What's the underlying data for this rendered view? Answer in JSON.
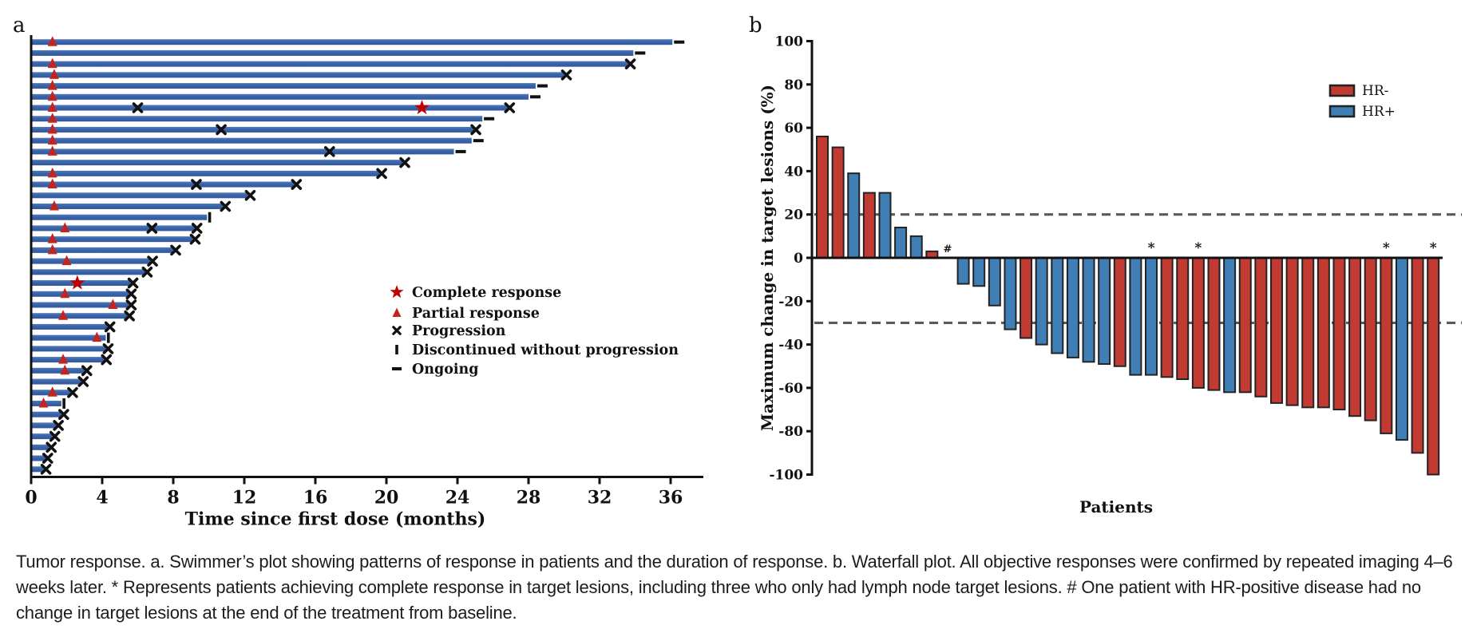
{
  "figure": {
    "panel_a_label": "a",
    "panel_b_label": "b"
  },
  "caption": {
    "line1": "Tumor response. a. Swimmer’s plot showing patterns of response in patients and the duration of response. b. Waterfall plot. All objective responses were",
    "line2": "confirmed by repeated imaging 4–6 weeks later. * Represents patients achieving complete response in target lesions, including three who only had lymph",
    "line3": "node target lesions. # One patient with HR-positive disease had no change in target lesions at the end of the treatment from baseline."
  },
  "colors": {
    "swimmer_bar": "#3a63a8",
    "swimmer_bar_light": "#4f78bc",
    "swimmer_bar_dark": "#33589b",
    "marker_red": "#c42420",
    "star_red": "#c00000",
    "marker_black": "#111111",
    "waterfall_red": "#c23b32",
    "waterfall_blue": "#3f7fb5",
    "bar_outline": "#232323",
    "dashed_line": "#5a5a5a"
  },
  "chart_data": [
    {
      "type": "swimmer",
      "panel": "a",
      "xlabel": "Time since first dose (months)",
      "x_ticks": [
        0,
        4,
        8,
        12,
        16,
        20,
        24,
        28,
        32,
        36
      ],
      "xlim": [
        0,
        37.8
      ],
      "grid": false,
      "legend_position": "inside-right",
      "legend": [
        {
          "symbol": "star",
          "label": "Complete response"
        },
        {
          "symbol": "triangle",
          "label": "Partial response"
        },
        {
          "symbol": "cross",
          "label": "Progression"
        },
        {
          "symbol": "tick",
          "label": "Discontinued without progression"
        },
        {
          "symbol": "dash",
          "label": "Ongoing"
        }
      ],
      "rows": [
        {
          "d": 36.1,
          "tri": 1.2,
          "end": "ongoing"
        },
        {
          "d": 33.9,
          "end": "ongoing"
        },
        {
          "d": 33.6,
          "tri": 1.2,
          "end": "x"
        },
        {
          "d": 30.0,
          "tri": 1.3,
          "end": "x"
        },
        {
          "d": 28.4,
          "tri": 1.2,
          "end": "ongoing"
        },
        {
          "d": 28.0,
          "tri": 1.2,
          "end": "ongoing"
        },
        {
          "d": 26.8,
          "tri": 1.2,
          "star": 22.0,
          "mx": 6.0,
          "end": "x"
        },
        {
          "d": 25.4,
          "tri": 1.2,
          "end": "ongoing"
        },
        {
          "d": 24.9,
          "tri": 1.2,
          "mx": 10.7,
          "end": "x"
        },
        {
          "d": 24.8,
          "tri": 1.2,
          "end": "ongoing"
        },
        {
          "d": 23.8,
          "tri": 1.2,
          "mx": 16.8,
          "end": "ongoing"
        },
        {
          "d": 20.9,
          "end": "x"
        },
        {
          "d": 19.6,
          "tri": 1.2,
          "end": "x"
        },
        {
          "d": 14.8,
          "tri": 1.2,
          "mx": 9.3,
          "end": "x"
        },
        {
          "d": 12.2,
          "end": "x"
        },
        {
          "d": 10.8,
          "tri": 1.3,
          "end": "x"
        },
        {
          "d": 9.9,
          "end": "disc"
        },
        {
          "d": 9.2,
          "tri": 1.9,
          "mx": 6.8,
          "end": "x"
        },
        {
          "d": 9.1,
          "tri": 1.2,
          "end": "x"
        },
        {
          "d": 8.0,
          "tri": 1.2,
          "end": "x"
        },
        {
          "d": 6.7,
          "tri": 2.0,
          "end": "x"
        },
        {
          "d": 6.4,
          "end": "x"
        },
        {
          "d": 5.6,
          "star": 2.6,
          "end": "x"
        },
        {
          "d": 5.5,
          "tri": 1.9,
          "end": "x"
        },
        {
          "d": 5.5,
          "tri": 4.6,
          "end": "x"
        },
        {
          "d": 5.4,
          "tri": 1.8,
          "end": "x"
        },
        {
          "d": 4.3,
          "end": "x"
        },
        {
          "d": 4.2,
          "tri": 3.7,
          "end": "disc"
        },
        {
          "d": 4.2,
          "end": "x"
        },
        {
          "d": 4.1,
          "tri": 1.8,
          "end": "x"
        },
        {
          "d": 3.0,
          "tri": 1.9,
          "end": "x"
        },
        {
          "d": 2.8,
          "end": "x"
        },
        {
          "d": 2.2,
          "tri": 1.2,
          "end": "x"
        },
        {
          "d": 1.7,
          "tri": 0.7,
          "end": "disc"
        },
        {
          "d": 1.7,
          "end": "x"
        },
        {
          "d": 1.4,
          "end": "x"
        },
        {
          "d": 1.2,
          "end": "x"
        },
        {
          "d": 1.0,
          "end": "x"
        },
        {
          "d": 0.8,
          "end": "x"
        },
        {
          "d": 0.7,
          "end": "x"
        }
      ]
    },
    {
      "type": "waterfall",
      "panel": "b",
      "ylabel": "Maximum change in target lesions (%)",
      "xlabel": "Patients",
      "y_ticks": [
        100,
        80,
        60,
        40,
        20,
        0,
        -20,
        -40,
        -60,
        -80,
        -100
      ],
      "ylim": [
        -100,
        100
      ],
      "reference_lines": [
        20,
        -30
      ],
      "legend_position": "top-right",
      "legend": [
        {
          "label": "HR-",
          "key": "neg"
        },
        {
          "label": "HR+",
          "key": "pos"
        }
      ],
      "patients": [
        {
          "v": 56,
          "hr": "neg"
        },
        {
          "v": 51,
          "hr": "neg"
        },
        {
          "v": 39,
          "hr": "pos"
        },
        {
          "v": 30,
          "hr": "neg"
        },
        {
          "v": 30,
          "hr": "pos"
        },
        {
          "v": 14,
          "hr": "pos"
        },
        {
          "v": 10,
          "hr": "pos"
        },
        {
          "v": 3,
          "hr": "neg"
        },
        {
          "v": 0,
          "hr": "pos",
          "note": "#"
        },
        {
          "v": -12,
          "hr": "pos"
        },
        {
          "v": -13,
          "hr": "pos"
        },
        {
          "v": -22,
          "hr": "pos"
        },
        {
          "v": -33,
          "hr": "pos"
        },
        {
          "v": -37,
          "hr": "neg"
        },
        {
          "v": -40,
          "hr": "pos"
        },
        {
          "v": -44,
          "hr": "pos"
        },
        {
          "v": -46,
          "hr": "pos"
        },
        {
          "v": -48,
          "hr": "pos"
        },
        {
          "v": -49,
          "hr": "pos"
        },
        {
          "v": -50,
          "hr": "neg"
        },
        {
          "v": -54,
          "hr": "pos"
        },
        {
          "v": -54,
          "hr": "pos",
          "note": "*"
        },
        {
          "v": -55,
          "hr": "neg"
        },
        {
          "v": -56,
          "hr": "neg"
        },
        {
          "v": -60,
          "hr": "neg",
          "note": "*"
        },
        {
          "v": -61,
          "hr": "neg"
        },
        {
          "v": -62,
          "hr": "pos"
        },
        {
          "v": -62,
          "hr": "neg"
        },
        {
          "v": -64,
          "hr": "neg"
        },
        {
          "v": -67,
          "hr": "neg"
        },
        {
          "v": -68,
          "hr": "neg"
        },
        {
          "v": -69,
          "hr": "neg"
        },
        {
          "v": -69,
          "hr": "neg"
        },
        {
          "v": -70,
          "hr": "neg"
        },
        {
          "v": -73,
          "hr": "neg"
        },
        {
          "v": -75,
          "hr": "neg"
        },
        {
          "v": -81,
          "hr": "neg",
          "note": "*"
        },
        {
          "v": -84,
          "hr": "pos"
        },
        {
          "v": -90,
          "hr": "neg"
        },
        {
          "v": -100,
          "hr": "neg",
          "note": "*"
        }
      ]
    }
  ]
}
